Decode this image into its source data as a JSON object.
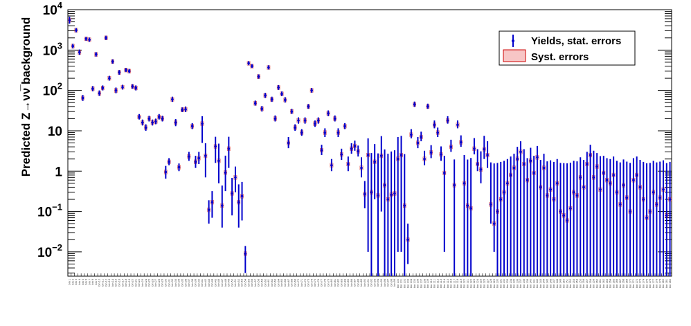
{
  "chart_data": {
    "type": "scatter",
    "ylabel": "Predicted Z→νν̅ background",
    "yscale": "log",
    "ylim": [
      0.0025,
      10000
    ],
    "y_ticks": [
      {
        "value": 0.01,
        "base": "10",
        "exp": "−2"
      },
      {
        "value": 0.1,
        "base": "10",
        "exp": "−1"
      },
      {
        "value": 1,
        "base": "1",
        "exp": ""
      },
      {
        "value": 10,
        "base": "10",
        "exp": ""
      },
      {
        "value": 100,
        "base": "10",
        "exp": "2"
      },
      {
        "value": 1000,
        "base": "10",
        "exp": "3"
      },
      {
        "value": 10000,
        "base": "10",
        "exp": "4"
      }
    ],
    "legend_position": "top-right",
    "colors": {
      "points": "#0000cc",
      "syst_fill": "#f7c6c6",
      "syst_border": "#cc0000"
    },
    "series": [
      {
        "name": "Yields, stat. errors",
        "values": [
          5500,
          1250,
          3100,
          880,
          65,
          1900,
          1800,
          110,
          780,
          85,
          115,
          2000,
          200,
          520,
          100,
          280,
          120,
          320,
          300,
          125,
          115,
          22,
          16,
          12,
          20,
          16,
          17,
          22,
          20,
          0.95,
          1.7,
          60,
          16,
          1.25,
          33,
          34,
          2.3,
          13,
          1.7,
          2.1,
          15,
          2.4,
          0.11,
          0.17,
          4.1,
          1.8,
          0.14,
          0.92,
          3.6,
          0.28,
          0.7,
          0.17,
          0.24,
          0.009,
          470,
          400,
          48,
          220,
          35,
          75,
          370,
          60,
          20,
          118,
          82,
          58,
          5,
          30,
          12,
          18,
          9,
          18,
          40,
          100,
          15,
          18,
          3.3,
          9,
          27,
          1.4,
          20,
          9,
          2.6,
          13,
          1.5,
          3.6,
          4.2,
          3.1,
          1.2,
          0.27,
          2.5,
          0.3,
          1.7,
          0.25,
          2.4,
          0.45,
          0.2,
          0.26,
          0.28,
          2,
          2.5,
          0.14,
          0.02,
          8,
          45,
          5,
          7,
          2,
          40,
          2.9,
          14,
          9,
          2.6,
          0.9,
          18,
          4,
          0.45,
          14,
          5.2,
          0.5,
          0.14,
          0.12,
          3.6,
          1.5,
          1.1,
          3.5,
          2.5,
          0.15,
          0.05,
          0.1,
          0.2,
          0.3,
          0.5,
          0.8,
          1.2,
          2,
          3,
          1.5,
          0.6,
          1.8,
          0.9,
          2.2,
          0.4,
          1.2,
          0.25,
          0.35,
          0.2,
          0.5,
          0.1,
          0.08,
          0.06,
          0.12,
          0.3,
          0.25,
          0.7,
          0.4,
          1.5,
          2.5,
          0.7,
          1.3,
          0.35,
          0.9,
          0.6,
          0.5,
          0.8,
          0.3,
          0.15,
          0.45,
          0.22,
          0.1,
          0.6,
          0.8,
          0.4,
          0.2,
          0.07,
          0.1,
          0.3,
          0.15,
          0.22,
          0.35,
          0.08,
          0.2
        ],
        "err_low": [
          1000,
          150,
          350,
          120,
          10,
          200,
          200,
          15,
          90,
          12,
          15,
          220,
          25,
          60,
          15,
          35,
          15,
          35,
          35,
          15,
          15,
          3,
          2.5,
          2,
          3,
          2.5,
          2.5,
          3,
          3,
          0.3,
          0.3,
          8,
          3,
          0.25,
          4,
          5,
          0.5,
          2,
          0.5,
          0.6,
          10,
          1.7,
          0.06,
          0.1,
          2.5,
          1.3,
          0.1,
          0.6,
          2.4,
          0.2,
          0.4,
          0.13,
          0.18,
          0.006,
          50,
          40,
          6,
          25,
          5,
          10,
          40,
          8,
          3,
          15,
          10,
          8,
          1.3,
          4,
          2,
          3,
          1.5,
          3,
          5,
          12,
          2.5,
          3,
          0.8,
          2,
          4,
          0.4,
          3,
          2,
          0.7,
          2,
          0.5,
          0.9,
          1,
          0.8,
          0.5,
          0.15,
          2.49,
          0.299,
          1.5,
          0.249,
          2.3,
          0.449,
          0.199,
          0.259,
          0.279,
          1.99,
          2.49,
          0.139,
          0.015,
          1.5,
          6,
          1.3,
          1.5,
          0.6,
          5,
          0.8,
          2.5,
          2,
          0.8,
          0.89,
          3,
          1,
          0.449,
          2.5,
          1.2,
          0.499,
          0.139,
          0.119,
          1,
          0.5,
          0.6,
          1.5,
          1.3,
          0.1,
          0.04,
          0.099,
          0.199,
          0.299,
          0.499,
          0.799,
          1.199,
          1.999,
          2.999,
          1.499,
          0.599,
          1.799,
          0.899,
          2.199,
          0.399,
          1.199,
          0.249,
          0.349,
          0.199,
          0.499,
          0.099,
          0.079,
          0.059,
          0.119,
          0.299,
          0.249,
          0.699,
          0.399,
          1.499,
          2.499,
          0.699,
          1.299,
          0.349,
          0.899,
          0.599,
          0.499,
          0.799,
          0.299,
          0.149,
          0.449,
          0.219,
          0.099,
          0.599,
          0.799,
          0.399,
          0.199,
          0.069,
          0.099,
          0.299,
          0.149,
          0.219,
          0.349,
          0.079,
          0.199
        ],
        "err_high": [
          1200,
          180,
          420,
          150,
          12,
          240,
          240,
          18,
          110,
          15,
          18,
          260,
          30,
          70,
          18,
          40,
          18,
          40,
          40,
          18,
          18,
          4,
          3,
          2.5,
          3.5,
          3,
          3,
          4,
          3.5,
          0.4,
          0.4,
          10,
          3.5,
          0.3,
          5,
          6,
          0.7,
          2.5,
          0.7,
          0.9,
          8,
          2.5,
          0.08,
          0.15,
          3,
          3,
          0.3,
          1.5,
          3.5,
          0.4,
          0.6,
          0.3,
          0.3,
          0.005,
          60,
          50,
          8,
          30,
          6,
          12,
          50,
          10,
          4,
          18,
          12,
          10,
          2,
          5,
          2.5,
          3.5,
          2,
          3.5,
          6,
          15,
          3,
          3.5,
          1.2,
          2.5,
          5,
          0.6,
          4,
          2.5,
          1,
          2.5,
          0.8,
          1.3,
          1.5,
          1.2,
          1,
          0.3,
          4,
          2.5,
          3,
          2.5,
          5,
          3,
          2.5,
          2.8,
          3,
          5,
          5,
          2.5,
          0.03,
          3,
          8,
          2,
          2.5,
          1.2,
          7,
          1.5,
          4,
          3,
          1.5,
          1.5,
          5,
          2,
          1.5,
          4,
          2.5,
          2,
          1.8,
          2,
          3,
          2,
          2,
          4,
          3,
          1.5,
          1.5,
          1.5,
          1.5,
          1.5,
          1.5,
          1.5,
          1.5,
          2,
          2.5,
          2,
          1.5,
          2,
          1.5,
          2,
          1.5,
          1.5,
          1.5,
          1.5,
          1.5,
          1.5,
          1.5,
          1.5,
          1.5,
          1.5,
          1.5,
          1.5,
          1.5,
          1.5,
          1.5,
          2,
          2.5,
          1.5,
          2,
          1.5,
          1.5,
          1.5,
          1.5,
          1.5,
          1.5,
          1.5,
          1.5,
          1.5,
          1.5,
          1.5,
          1.5,
          1.5,
          1.5,
          1.5,
          1.5,
          1.5,
          1.5,
          1.5,
          1.5,
          1.5,
          1.5
        ]
      },
      {
        "name": "Syst. errors",
        "kind": "band"
      }
    ]
  }
}
